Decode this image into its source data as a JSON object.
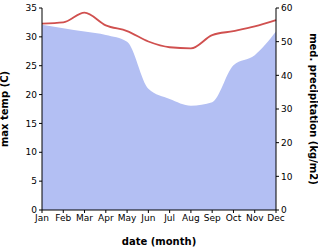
{
  "chart_data": {
    "type": "line",
    "x_label": "date (month)",
    "categories": [
      "Jan",
      "Feb",
      "Mar",
      "Apr",
      "May",
      "Jun",
      "Jul",
      "Aug",
      "Sep",
      "Oct",
      "Nov",
      "Dec"
    ],
    "series": [
      {
        "name": "max temp (C)",
        "type": "line",
        "color": "#d0504f",
        "values": [
          32.3,
          32.5,
          34.2,
          32.0,
          31.0,
          29.2,
          28.2,
          28.0,
          30.3,
          31.0,
          31.8,
          32.9
        ]
      },
      {
        "name": "med. precipitation (kg/m2)",
        "type": "area",
        "axis": "y2",
        "color": "#b3bff3",
        "values": [
          55,
          54,
          53,
          52,
          50,
          36,
          33,
          31,
          32,
          43,
          46,
          53
        ]
      }
    ],
    "ylim": [
      0,
      35
    ],
    "yticks": [
      0,
      5,
      10,
      15,
      20,
      25,
      30,
      35
    ],
    "y2lim": [
      0,
      60
    ],
    "y2ticks": [
      0,
      10,
      20,
      30,
      40,
      50,
      60
    ],
    "grid": false
  }
}
